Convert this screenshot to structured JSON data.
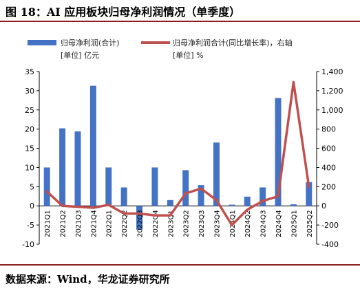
{
  "title": "图 18：AI 应用板块归母净利润情况（单季度）",
  "source": "数据来源：Wind，华龙证券研究所",
  "legend": {
    "bar_label": "归母净利润(合计)",
    "bar_unit": "[单位] 亿元",
    "line_label": "归母净利润合计(同比增长率)，右轴",
    "line_unit": "[单位] %"
  },
  "colors": {
    "bar": "#4472c4",
    "line": "#c0504d",
    "rule": "#8a1f1f"
  },
  "chart_data": {
    "type": "bar",
    "categories": [
      "2021Q1",
      "2021Q2",
      "2021Q3",
      "2021Q4",
      "2022Q1",
      "2022Q2",
      "2022Q3",
      "2022Q4",
      "2023Q1",
      "2023Q2",
      "2023Q3",
      "2023Q4",
      "2024Q1",
      "2024Q2",
      "2024Q3",
      "2024Q4",
      "2025Q1",
      "2025Q2"
    ],
    "series": [
      {
        "name": "归母净利润(合计)",
        "type": "bar",
        "axis": "left",
        "unit": "亿元",
        "values": [
          10.0,
          20.2,
          19.4,
          31.3,
          10.0,
          4.8,
          -6.2,
          10.0,
          1.5,
          9.3,
          5.4,
          16.5,
          0.3,
          2.4,
          4.8,
          28.1,
          0.4,
          6.2
        ]
      },
      {
        "name": "归母净利润合计(同比增长率)，右轴",
        "type": "line",
        "axis": "right",
        "unit": "%",
        "values": [
          150,
          0,
          -10,
          -20,
          10,
          -80,
          -80,
          -100,
          -100,
          130,
          180,
          60,
          -200,
          -40,
          50,
          100,
          1290,
          200
        ]
      }
    ],
    "yleft": {
      "lim": [
        -10,
        35
      ],
      "ticks": [
        "-10",
        "-5",
        "0",
        "5",
        "10",
        "15",
        "20",
        "25",
        "30",
        "35"
      ]
    },
    "yright": {
      "lim": [
        -400,
        1400
      ],
      "ticks": [
        "-400",
        "-200",
        "0",
        "200",
        "400",
        "600",
        "800",
        "1,000",
        "1,200",
        "1,400"
      ]
    },
    "grid": false,
    "legend_position": "top"
  }
}
